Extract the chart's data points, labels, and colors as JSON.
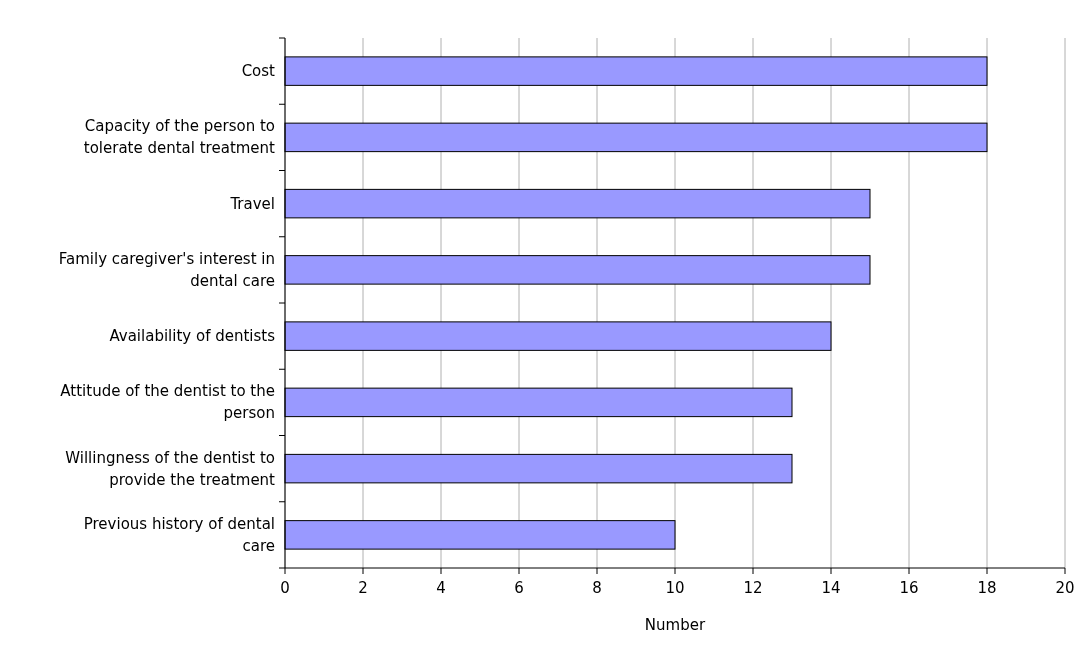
{
  "chart_data": {
    "type": "bar",
    "orientation": "horizontal",
    "xlabel": "Number",
    "categories": [
      "Cost",
      "Capacity of the person to tolerate dental treatment",
      "Travel",
      "Family caregiver's interest in dental care",
      "Availability of dentists",
      "Attitude of the dentist to the person",
      "Willingness of the dentist to provide the treatment",
      "Previous history of dental care"
    ],
    "values": [
      18,
      18,
      15,
      15,
      14,
      13,
      13,
      10
    ],
    "color": "#9999ff",
    "xlim": [
      0,
      20
    ],
    "xticks": [
      0,
      2,
      4,
      6,
      8,
      10,
      12,
      14,
      16,
      18,
      20
    ],
    "grid": "x"
  }
}
